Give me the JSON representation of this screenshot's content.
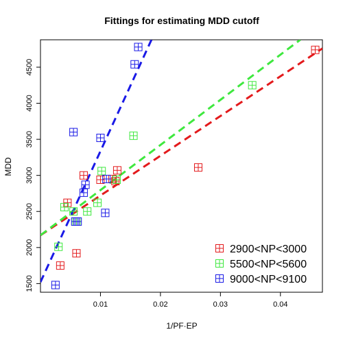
{
  "chart_data": {
    "type": "scatter",
    "title": "Fittings for estimating MDD cutoff",
    "xlabel": "1/PF·EP",
    "ylabel": "MDD",
    "xlim": [
      0.0,
      0.047
    ],
    "ylim": [
      1380,
      4880
    ],
    "xticks": [
      0.01,
      0.02,
      0.03,
      0.04
    ],
    "xtick_labels": [
      "0.01",
      "0.02",
      "0.03",
      "0.04"
    ],
    "yticks": [
      1500,
      2000,
      2500,
      3000,
      3500,
      4000,
      4500
    ],
    "ytick_labels": [
      "1500",
      "2000",
      "2500",
      "3000",
      "3500",
      "4000",
      "4500"
    ],
    "grid": false,
    "legend_position": "bottom-right",
    "series": [
      {
        "name": "2900<NP<3000",
        "color": "#e31a1c",
        "points": [
          {
            "x": 0.0033,
            "y": 1750
          },
          {
            "x": 0.006,
            "y": 1920
          },
          {
            "x": 0.0045,
            "y": 2620
          },
          {
            "x": 0.0072,
            "y": 3000
          },
          {
            "x": 0.01,
            "y": 2940
          },
          {
            "x": 0.012,
            "y": 2950
          },
          {
            "x": 0.0125,
            "y": 2920
          },
          {
            "x": 0.0128,
            "y": 3070
          },
          {
            "x": 0.0263,
            "y": 3110
          },
          {
            "x": 0.0458,
            "y": 4740
          }
        ],
        "fit": {
          "x": [
            0.0,
            0.047
          ],
          "y": [
            2170,
            4760
          ]
        }
      },
      {
        "name": "5500<NP<5600",
        "color": "#3fe83f",
        "points": [
          {
            "x": 0.003,
            "y": 2010
          },
          {
            "x": 0.004,
            "y": 2560
          },
          {
            "x": 0.0055,
            "y": 2500
          },
          {
            "x": 0.006,
            "y": 2360
          },
          {
            "x": 0.0078,
            "y": 2500
          },
          {
            "x": 0.0095,
            "y": 2620
          },
          {
            "x": 0.0102,
            "y": 3060
          },
          {
            "x": 0.0127,
            "y": 2940
          },
          {
            "x": 0.0155,
            "y": 3550
          },
          {
            "x": 0.0353,
            "y": 4250
          }
        ],
        "fit": {
          "x": [
            0.0,
            0.0433
          ],
          "y": [
            2170,
            4880
          ]
        }
      },
      {
        "name": "9000<NP<9100",
        "color": "#1a1ae6",
        "points": [
          {
            "x": 0.0025,
            "y": 1480
          },
          {
            "x": 0.0055,
            "y": 3600
          },
          {
            "x": 0.0058,
            "y": 2360
          },
          {
            "x": 0.0062,
            "y": 2360
          },
          {
            "x": 0.0072,
            "y": 2760
          },
          {
            "x": 0.0075,
            "y": 2870
          },
          {
            "x": 0.01,
            "y": 3520
          },
          {
            "x": 0.0108,
            "y": 2480
          },
          {
            "x": 0.011,
            "y": 2950
          },
          {
            "x": 0.0157,
            "y": 4540
          },
          {
            "x": 0.0163,
            "y": 4780
          }
        ],
        "fit": {
          "x": [
            0.0,
            0.0185
          ],
          "y": [
            1520,
            4880
          ]
        }
      }
    ]
  }
}
